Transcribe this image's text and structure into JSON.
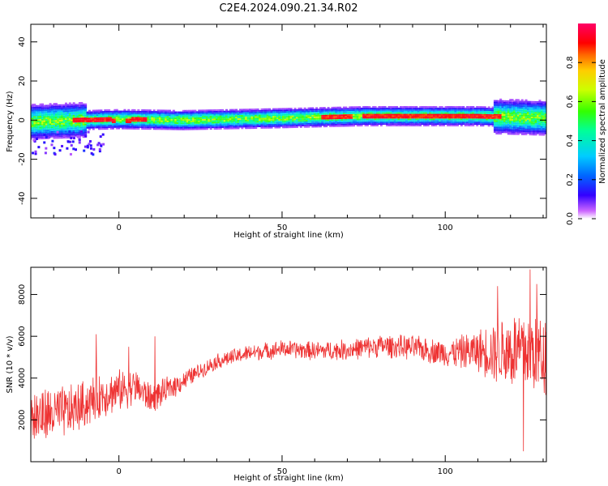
{
  "page_title": "C2E4.2024.090.21.34.R02",
  "chart_data": [
    {
      "type": "heatmap",
      "title": "C2E4.2024.090.21.34.R02",
      "xlabel": "Height of straight line (km)",
      "ylabel": "Frequency (Hz)",
      "xlim": [
        -27,
        131
      ],
      "ylim": [
        -50,
        49
      ],
      "xticks": [
        0,
        50,
        100
      ],
      "xtick_labels": [
        "0",
        "50",
        "100"
      ],
      "yticks": [
        -40,
        -20,
        0,
        20,
        40
      ],
      "ytick_labels": [
        "-40",
        "-20",
        "0",
        "20",
        "40"
      ],
      "grid": false,
      "colorbar": {
        "label": "Normalized spectral amplitude",
        "range": [
          0,
          1
        ],
        "ticks": [
          0,
          0.2,
          0.4,
          0.6,
          0.8
        ],
        "tick_labels": [
          "0.0",
          "0.2",
          "0.4",
          "0.6",
          "0.8"
        ],
        "colormap": [
          "#ffffff",
          "#cc66ff",
          "#3300ff",
          "#0066ff",
          "#00ccff",
          "#00ff99",
          "#33ff00",
          "#ccff00",
          "#ffcc00",
          "#ff6600",
          "#ff0000",
          "#ff0066"
        ]
      },
      "band": {
        "center_hz": [
          [
            -27,
            -1
          ],
          [
            -10,
            0
          ],
          [
            0,
            0.5
          ],
          [
            20,
            0
          ],
          [
            50,
            1
          ],
          [
            75,
            2
          ],
          [
            110,
            2
          ],
          [
            131,
            1
          ]
        ],
        "halfwidth_hz": 4,
        "peak_segments": [
          [
            -14,
            -1,
            0
          ],
          [
            2,
            9,
            0
          ],
          [
            62,
            72,
            1.5
          ],
          [
            75,
            100,
            2
          ],
          [
            100,
            117,
            2
          ]
        ]
      }
    },
    {
      "type": "line",
      "xlabel": "Height of straight line (km)",
      "ylabel": "SNR (10 * v/v)",
      "xlim": [
        -27,
        131
      ],
      "ylim": [
        0,
        9300
      ],
      "xticks": [
        0,
        50,
        100
      ],
      "xtick_labels": [
        "0",
        "50",
        "100"
      ],
      "yticks": [
        2000,
        4000,
        6000,
        8000
      ],
      "ytick_labels": [
        "2000",
        "4000",
        "6000",
        "8000"
      ],
      "line_color": "#ee3333",
      "trend": {
        "x": [
          -27,
          -15,
          -5,
          5,
          10,
          20,
          30,
          40,
          50,
          60,
          70,
          80,
          90,
          100,
          110,
          120,
          131
        ],
        "y": [
          2100,
          2400,
          3200,
          3600,
          3000,
          3900,
          4800,
          5200,
          5400,
          5300,
          5350,
          5550,
          5450,
          5200,
          5300,
          5300,
          5200
        ]
      },
      "noise": {
        "x": [
          -27,
          0,
          10,
          25,
          60,
          100,
          110,
          120,
          131
        ],
        "amplitude": [
          1600,
          1100,
          800,
          400,
          500,
          700,
          1100,
          2200,
          2400
        ]
      },
      "extreme_peaks": [
        {
          "x": -7,
          "y": 6100
        },
        {
          "x": 3,
          "y": 5500
        },
        {
          "x": 11,
          "y": 6000
        },
        {
          "x": 116,
          "y": 8400
        },
        {
          "x": 126,
          "y": 9200
        },
        {
          "x": 128,
          "y": 8500
        },
        {
          "x": 124,
          "y": 500
        }
      ]
    }
  ]
}
